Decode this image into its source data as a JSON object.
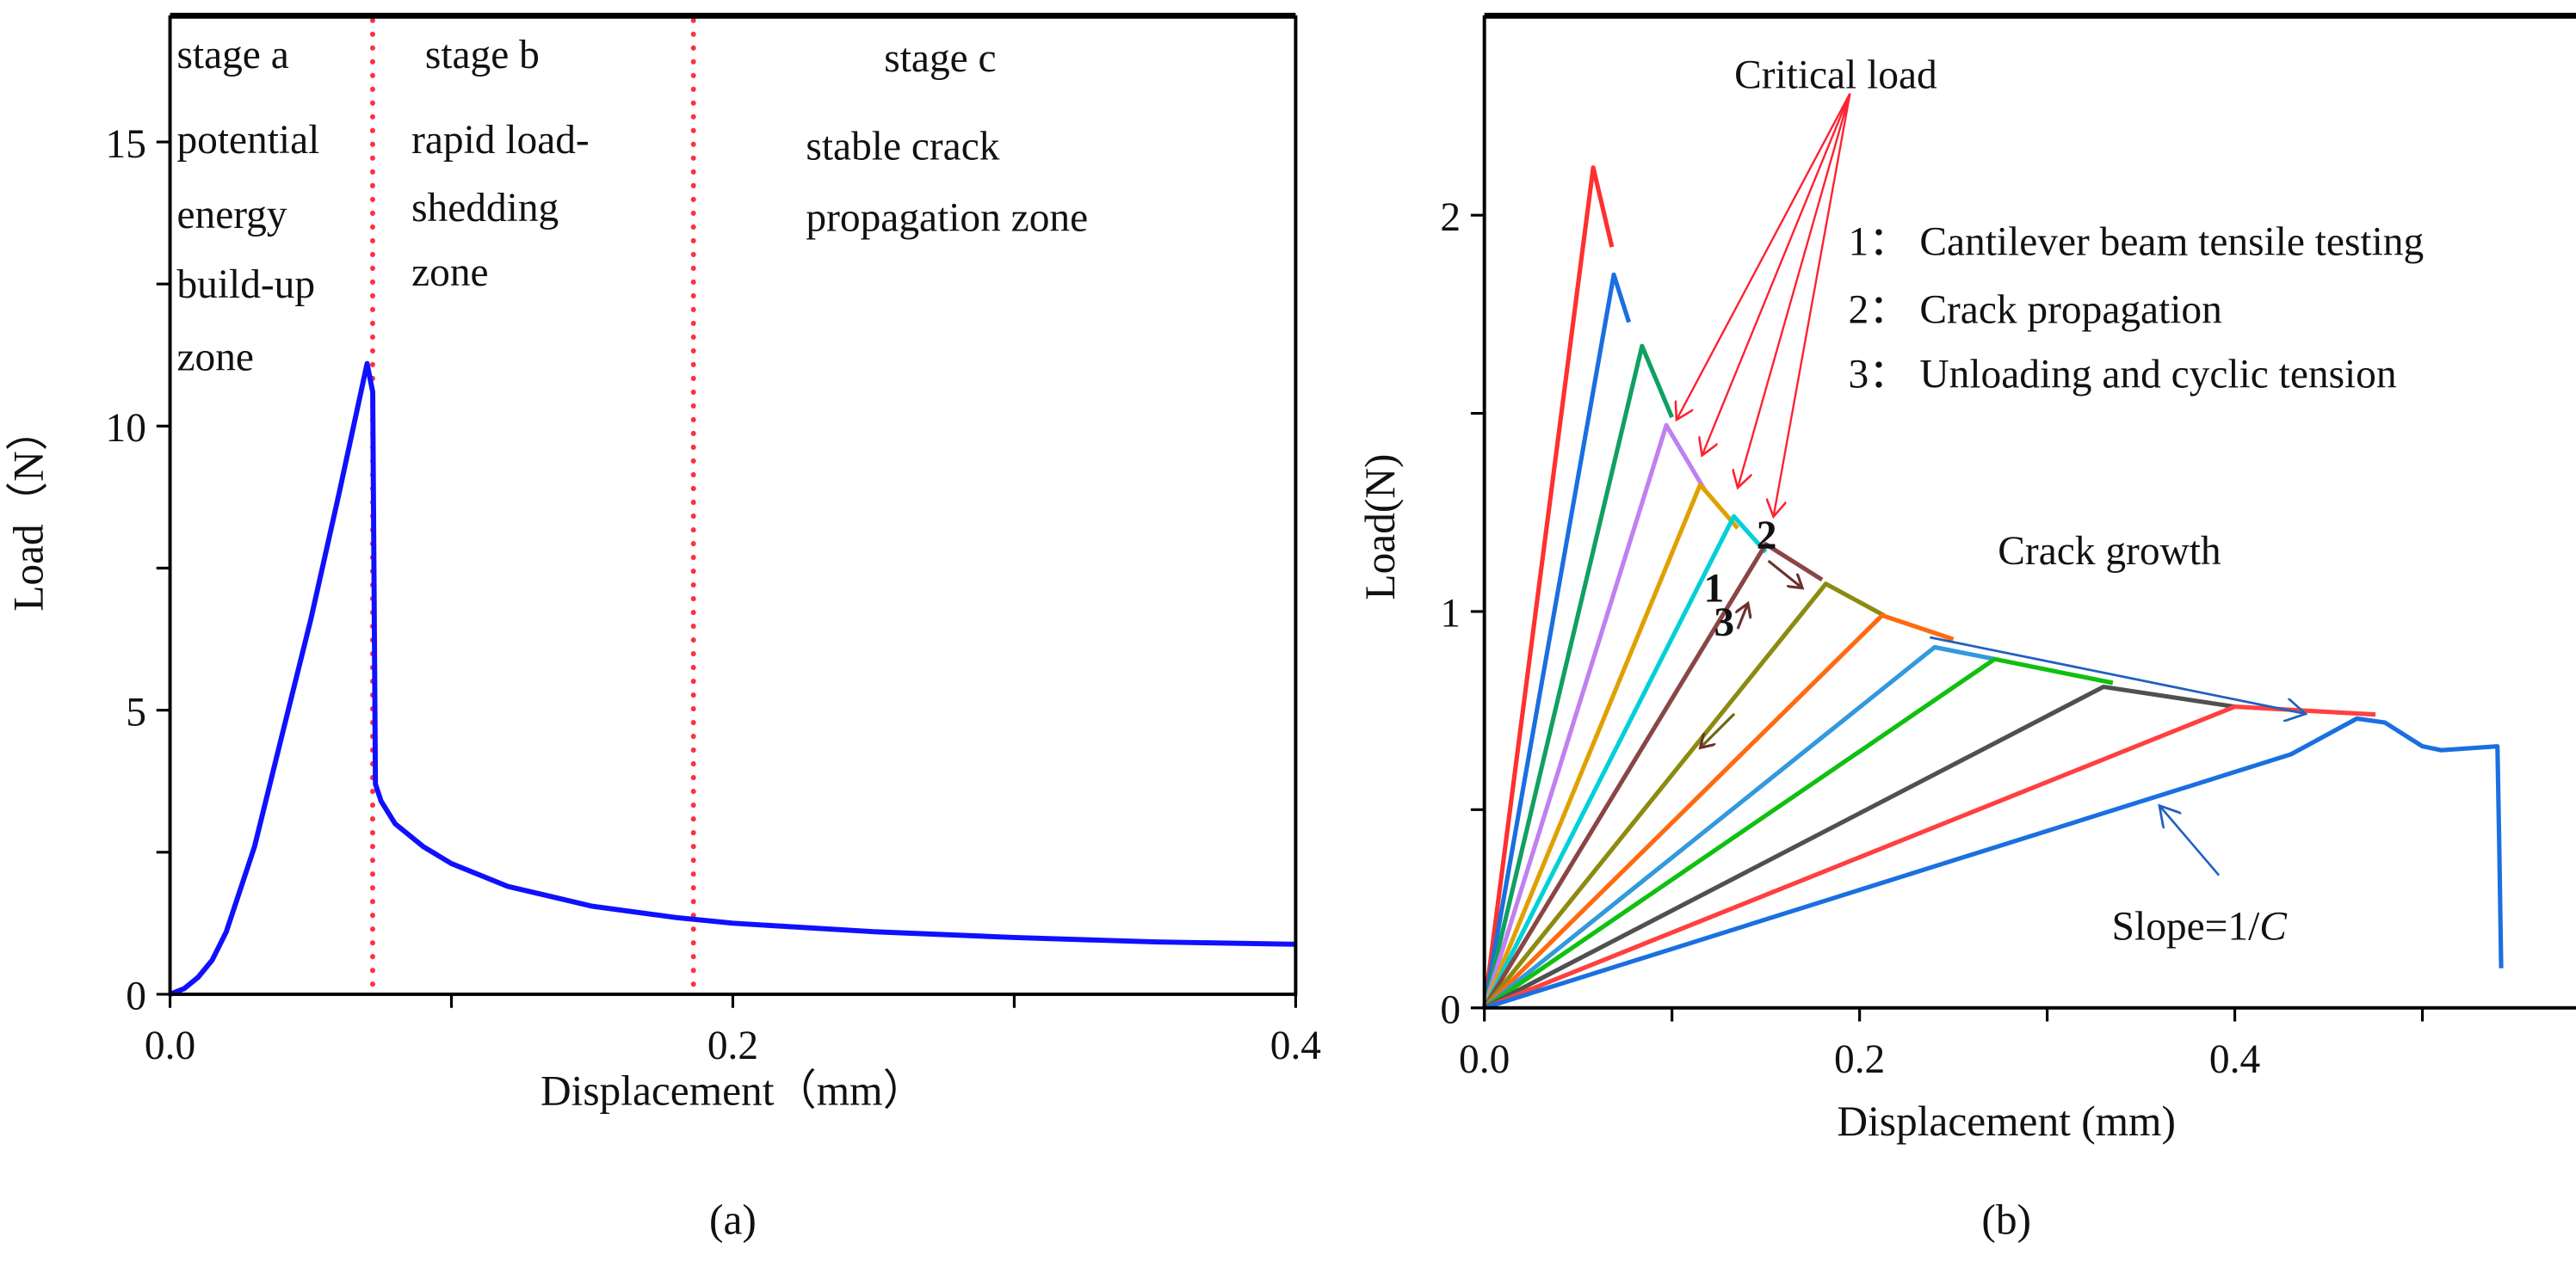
{
  "chart_data": [
    {
      "type": "line",
      "panel_label": "(a)",
      "xlabel": "Displacement（mm）",
      "ylabel": "Load（N）",
      "xlim": [
        0,
        0.4
      ],
      "ylim": [
        0,
        17.2
      ],
      "xticks": [
        0,
        0.1,
        0.2,
        0.3,
        0.4
      ],
      "xtick_labels": [
        "0.0",
        "",
        "0.2",
        "",
        "0.4"
      ],
      "yticks": [
        0,
        2.5,
        5,
        7.5,
        10,
        12.5,
        15
      ],
      "ytick_labels": [
        "0",
        "",
        "5",
        "",
        "10",
        "",
        "15"
      ],
      "series": [
        {
          "name": "load-displacement",
          "color": "#1010ff",
          "x": [
            0,
            0.005,
            0.01,
            0.015,
            0.02,
            0.03,
            0.04,
            0.05,
            0.06,
            0.07,
            0.072,
            0.073,
            0.075,
            0.08,
            0.09,
            0.1,
            0.12,
            0.15,
            0.18,
            0.2,
            0.25,
            0.3,
            0.35,
            0.4
          ],
          "y": [
            0,
            0.1,
            0.3,
            0.6,
            1.1,
            2.6,
            4.6,
            6.6,
            8.8,
            11.1,
            10.6,
            3.7,
            3.4,
            3.0,
            2.6,
            2.3,
            1.9,
            1.55,
            1.35,
            1.25,
            1.1,
            1.0,
            0.92,
            0.88
          ]
        }
      ],
      "vlines": {
        "color": "#ff3040",
        "x": [
          0.072,
          0.186
        ]
      },
      "annotations": [
        {
          "title": "stage a",
          "lines": [
            "potential",
            "energy",
            "build-up",
            "zone"
          ]
        },
        {
          "title": "stage b",
          "lines": [
            "rapid load-",
            "shedding",
            "zone"
          ]
        },
        {
          "title": "stage c",
          "lines": [
            "stable crack",
            "propagation zone"
          ]
        }
      ]
    },
    {
      "type": "line",
      "panel_label": "(b)",
      "xlabel": "Displacement (mm)",
      "ylabel": "Load(N)",
      "xlim": [
        0,
        0.6
      ],
      "ylim": [
        0,
        2.5
      ],
      "xticks": [
        0,
        0.1,
        0.2,
        0.3,
        0.4,
        0.5,
        0.6
      ],
      "xtick_labels": [
        "0.0",
        "",
        "0.2",
        "",
        "0.4",
        "",
        "0.6"
      ],
      "yticks": [
        0,
        0.5,
        1,
        1.5,
        2
      ],
      "ytick_labels": [
        "0",
        "",
        "1",
        "",
        "2"
      ],
      "series": [
        {
          "name": "cycle-1",
          "color": "#ff3030",
          "x": [
            0,
            0.058,
            0.068
          ],
          "y": [
            0,
            2.12,
            1.92
          ]
        },
        {
          "name": "cycle-2",
          "color": "#1a6fe0",
          "x": [
            0,
            0.069,
            0.077
          ],
          "y": [
            0,
            1.85,
            1.73
          ]
        },
        {
          "name": "cycle-3",
          "color": "#10a060",
          "x": [
            0,
            0.084,
            0.1
          ],
          "y": [
            0,
            1.67,
            1.49
          ]
        },
        {
          "name": "cycle-4",
          "color": "#c080f0",
          "x": [
            0,
            0.097,
            0.117
          ],
          "y": [
            0,
            1.47,
            1.31
          ]
        },
        {
          "name": "cycle-5",
          "color": "#e0a000",
          "x": [
            0,
            0.115,
            0.135
          ],
          "y": [
            0,
            1.32,
            1.21
          ]
        },
        {
          "name": "cycle-6",
          "color": "#00d0d8",
          "x": [
            0,
            0.133,
            0.15
          ],
          "y": [
            0,
            1.24,
            1.15
          ]
        },
        {
          "name": "cycle-7",
          "color": "#8b4545",
          "x": [
            0,
            0.15,
            0.18
          ],
          "y": [
            0,
            1.17,
            1.08
          ]
        },
        {
          "name": "cycle-8",
          "color": "#8b8b10",
          "x": [
            0,
            0.182,
            0.213
          ],
          "y": [
            0,
            1.07,
            0.99
          ]
        },
        {
          "name": "cycle-9",
          "color": "#ff6a10",
          "x": [
            0,
            0.212,
            0.25
          ],
          "y": [
            0,
            0.99,
            0.93
          ]
        },
        {
          "name": "cycle-10",
          "color": "#3399dd",
          "x": [
            0,
            0.24,
            0.272
          ],
          "y": [
            0,
            0.91,
            0.88
          ]
        },
        {
          "name": "cycle-11",
          "color": "#10c010",
          "x": [
            0,
            0.272,
            0.335
          ],
          "y": [
            0,
            0.88,
            0.82
          ]
        },
        {
          "name": "cycle-12",
          "color": "#505050",
          "x": [
            0,
            0.33,
            0.4
          ],
          "y": [
            0,
            0.81,
            0.76
          ]
        },
        {
          "name": "cycle-13",
          "color": "#ff4040",
          "x": [
            0,
            0.4,
            0.475
          ],
          "y": [
            0,
            0.76,
            0.74
          ]
        },
        {
          "name": "cycle-14",
          "color": "#1a70e0",
          "x": [
            0,
            0.43,
            0.465,
            0.48,
            0.49,
            0.5,
            0.51,
            0.54,
            0.541,
            0.542
          ],
          "y": [
            0,
            0.64,
            0.73,
            0.72,
            0.69,
            0.66,
            0.65,
            0.66,
            0.4,
            0.1
          ]
        }
      ],
      "annotations": {
        "critical_load": "Critical load",
        "legend_items": [
          "1： Cantilever beam tensile testing",
          "2： Crack propagation",
          "3： Unloading and cyclic tension"
        ],
        "crack_growth": "Crack growth",
        "slope_prefix": "Slope=1/",
        "slope_var": "C",
        "step_1": "1",
        "step_2": "2",
        "step_3": "3",
        "arrow_red": "#ff2030",
        "arrow_blue": "#2060c0"
      }
    }
  ]
}
